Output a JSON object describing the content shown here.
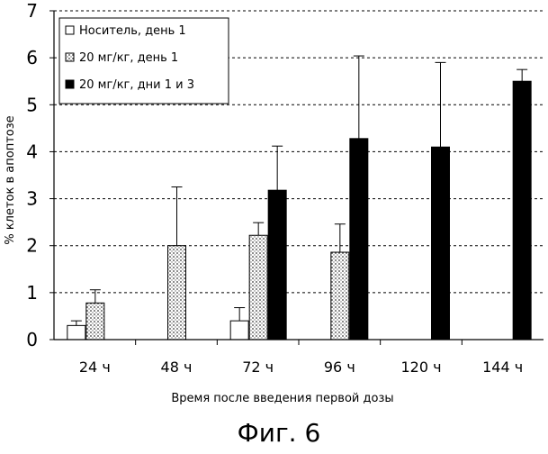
{
  "chart_data": {
    "type": "bar",
    "title": "",
    "xlabel": "Время после введения первой дозы",
    "ylabel": "% клеток в апоптозе",
    "ylim": [
      0,
      7
    ],
    "yticks": [
      0,
      1,
      2,
      3,
      4,
      5,
      6,
      7
    ],
    "grid": "horizontal-dashed",
    "legend_position": "top-left",
    "categories": [
      "24 ч",
      "48 ч",
      "72 ч",
      "96 ч",
      "120 ч",
      "144 ч"
    ],
    "series": [
      {
        "name": "Носитель, день 1",
        "pattern": "white",
        "values": [
          0.3,
          null,
          0.4,
          null,
          null,
          null
        ],
        "errors": [
          0.1,
          null,
          0.28,
          null,
          null,
          null
        ]
      },
      {
        "name": "20 мг/кг, день 1",
        "pattern": "dotted",
        "values": [
          0.78,
          2.0,
          2.22,
          1.86,
          null,
          null
        ],
        "errors": [
          0.28,
          1.25,
          0.27,
          0.6,
          null,
          null
        ]
      },
      {
        "name": "20 мг/кг, дни 1 и 3",
        "pattern": "black",
        "values": [
          null,
          null,
          3.18,
          4.28,
          4.1,
          5.5
        ],
        "errors": [
          null,
          null,
          0.94,
          1.76,
          1.8,
          0.25
        ]
      }
    ],
    "colors": {
      "white": "#ffffff",
      "dotted": "#d8d8d8",
      "black": "#000000"
    }
  },
  "figure_caption": "Фиг. 6"
}
